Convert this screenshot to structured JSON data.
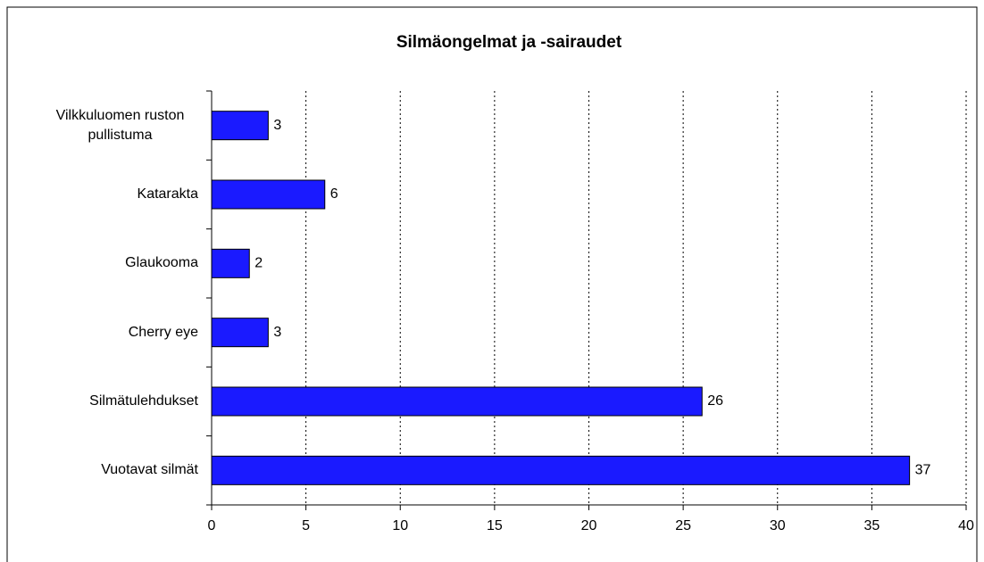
{
  "chart_data": {
    "type": "bar",
    "orientation": "horizontal",
    "title": "Silmäongelmat ja -sairaudet",
    "categories": [
      "Vilkkuluomen ruston pullistuma",
      "Katarakta",
      "Glaukooma",
      "Cherry eye",
      "Silmätulehdukset",
      "Vuotavat silmät"
    ],
    "values": [
      3,
      6,
      2,
      3,
      26,
      37
    ],
    "color": "#1a1aff",
    "xlim": [
      0,
      40
    ],
    "xticks": [
      0,
      5,
      10,
      15,
      20,
      25,
      30,
      35,
      40
    ],
    "grid": true
  }
}
